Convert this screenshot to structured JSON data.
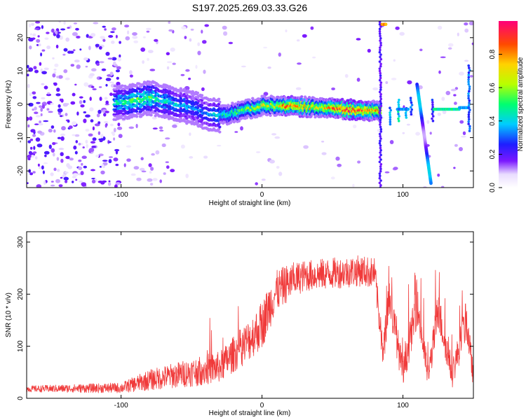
{
  "title": "S197.2025.269.03.33.G26",
  "colors": {
    "snr_line": "#f03a3a",
    "background": "#ffffff",
    "axis": "#000000"
  },
  "chart_data": [
    {
      "type": "heatmap",
      "name": "spectrogram",
      "xlabel": "Height of straight line (km)",
      "ylabel": "Frequency (Hz)",
      "xlim": [
        -167,
        150
      ],
      "ylim": [
        -25,
        25
      ],
      "xticks": [
        -100,
        0,
        100
      ],
      "yticks": [
        -20,
        -10,
        0,
        10,
        20
      ],
      "colorbar": {
        "label": "Normalized spectral amplitude",
        "range": [
          0,
          1
        ],
        "ticks": [
          0.0,
          0.2,
          0.4,
          0.6,
          0.8
        ]
      },
      "ridge": {
        "x": [
          -100,
          -90,
          -80,
          -70,
          -60,
          -50,
          -40,
          -30,
          -20,
          -10,
          0,
          10,
          20,
          40,
          60,
          80
        ],
        "y": [
          0.5,
          1.0,
          2.0,
          1.0,
          0.0,
          -1.0,
          -2.5,
          -3.5,
          -2.5,
          -1.5,
          -0.5,
          -0.5,
          -0.5,
          -1.0,
          -1.5,
          -2.0
        ],
        "amp": [
          0.45,
          0.55,
          0.55,
          0.45,
          0.4,
          0.35,
          0.35,
          0.45,
          0.55,
          0.6,
          0.7,
          0.7,
          0.9,
          0.7,
          1.0,
          0.8
        ]
      }
    },
    {
      "type": "line",
      "name": "snr",
      "xlabel": "Height of straight line (km)",
      "ylabel": "SNR (10 * v/v)",
      "xlim": [
        -167,
        150
      ],
      "ylim": [
        0,
        320
      ],
      "xticks": [
        -100,
        0,
        100
      ],
      "yticks": [
        0,
        100,
        200,
        300
      ],
      "envelope": {
        "x": [
          -167,
          -100,
          -80,
          -60,
          -40,
          -30,
          -20,
          -10,
          0,
          5,
          10,
          20,
          30,
          50,
          70,
          80,
          86,
          90,
          100,
          110,
          118,
          125,
          135,
          145,
          150
        ],
        "base": [
          18,
          20,
          35,
          45,
          55,
          60,
          85,
          110,
          140,
          175,
          205,
          225,
          235,
          240,
          245,
          240,
          80,
          200,
          45,
          180,
          40,
          170,
          45,
          150,
          40
        ],
        "noise": [
          6,
          10,
          20,
          25,
          30,
          30,
          35,
          40,
          45,
          45,
          40,
          35,
          30,
          30,
          30,
          30,
          30,
          40,
          30,
          40,
          25,
          40,
          25,
          40,
          20
        ]
      }
    }
  ]
}
